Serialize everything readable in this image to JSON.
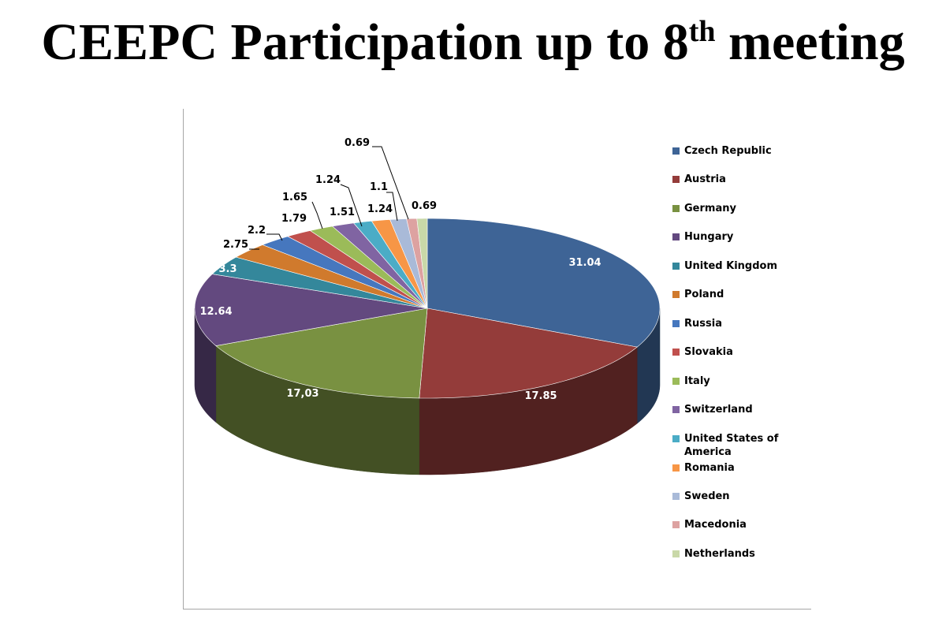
{
  "title": {
    "main": "CEEPC Participation up to 8",
    "sup": "th",
    "tail": "meeting"
  },
  "chart_data": {
    "type": "pie",
    "categories": [
      "Czech Republic",
      "Austria",
      "Germany",
      "Hungary",
      "United Kingdom",
      "Poland",
      "Russia",
      "Slovakia",
      "Italy",
      "Switzerland",
      "United States of America",
      "Romania",
      "Sweden",
      "Macedonia",
      "Netherlands"
    ],
    "values": [
      31.04,
      17.85,
      17.03,
      12.64,
      3.3,
      2.75,
      2.2,
      1.79,
      1.65,
      1.51,
      1.24,
      1.24,
      1.1,
      0.69,
      0.69
    ],
    "data_labels": [
      "31.04",
      "17.85",
      "17,03",
      "12.64",
      "3.3",
      "2.75",
      "2.2",
      "1.79",
      "1.65",
      "1.51",
      "1.24",
      "1.24",
      "1.1",
      "0.69",
      "0.69"
    ],
    "colors": [
      "#3e6496",
      "#943c3a",
      "#799141",
      "#63497f",
      "#34879b",
      "#d07a2d",
      "#4677be",
      "#c0504d",
      "#9bbb59",
      "#8064a2",
      "#4bacc6",
      "#f79646",
      "#a9bad8",
      "#dda2a1",
      "#c9d8a8"
    ],
    "legend_position": "right",
    "style": "3d-pie"
  }
}
